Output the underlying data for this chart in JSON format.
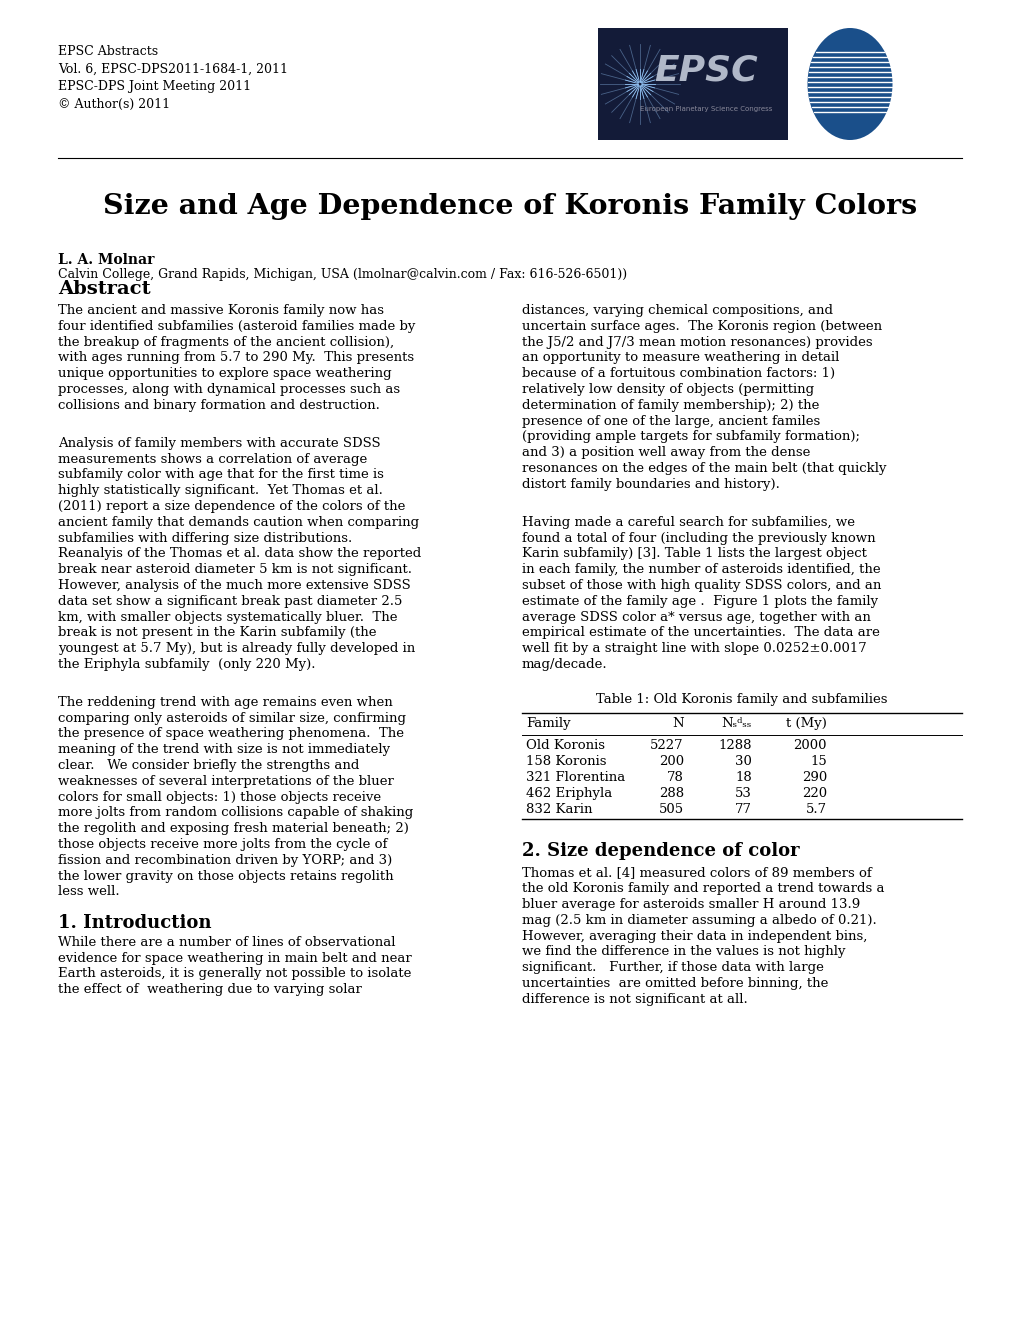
{
  "title": "Size and Age Dependence of Koronis Family Colors",
  "header_line1": "EPSC Abstracts",
  "header_line2": "Vol. 6, EPSC-DPS2011-1684-1, 2011",
  "header_line3": "EPSC-DPS Joint Meeting 2011",
  "header_line4": "© Author(s) 2011",
  "author_name": "L. A. Molnar",
  "author_affil": "Calvin College, Grand Rapids, Michigan, USA (lmolnar@calvin.com / Fax: 616-526-6501))",
  "abstract_title": "Abstract",
  "table_caption": "Table 1: Old Koronis family and subfamilies",
  "table_rows": [
    [
      "Old Koronis",
      "5227",
      "1288",
      "2000"
    ],
    [
      "158 Koronis",
      "200",
      "30",
      "15"
    ],
    [
      "321 Florentina",
      "78",
      "18",
      "290"
    ],
    [
      "462 Eriphyla",
      "288",
      "53",
      "220"
    ],
    [
      "832 Karin",
      "505",
      "77",
      "5.7"
    ]
  ],
  "section2_title": "2. Size dependence of color",
  "intro_title": "1. Introduction",
  "bg_color": "#ffffff",
  "text_color": "#000000"
}
